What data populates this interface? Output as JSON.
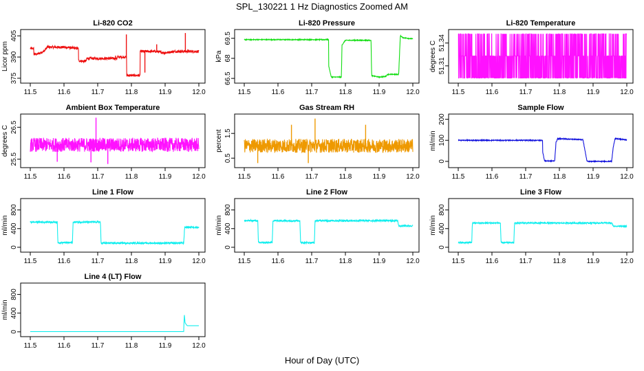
{
  "page": {
    "title": "SPL_130221  1 Hz Diagnostics Zoomed AM",
    "xlabel": "Hour of Day (UTC)"
  },
  "chart_data": [
    {
      "type": "line",
      "title": "Li-820 CO2",
      "ylabel": "Licor ppm",
      "color": "#ee1111",
      "xlim": [
        11.5,
        12.0
      ],
      "xticks": [
        "11.5",
        "11.6",
        "11.7",
        "11.8",
        "11.9",
        "12.0"
      ],
      "ylim": [
        373,
        408
      ],
      "yticks": [
        375,
        390,
        405
      ],
      "noise": 0.9,
      "spikes": [
        [
          11.785,
          406
        ],
        [
          11.84,
          379
        ],
        [
          11.875,
          399
        ],
        [
          11.96,
          407
        ],
        [
          11.753,
          391
        ]
      ],
      "x": [
        11.5,
        11.51,
        11.51,
        11.52,
        11.53,
        11.54,
        11.55,
        11.6,
        11.643,
        11.643,
        11.66,
        11.667,
        11.667,
        11.7,
        11.72,
        11.758,
        11.758,
        11.78,
        11.786,
        11.786,
        11.82,
        11.826,
        11.826,
        11.87,
        11.9,
        11.93,
        11.96,
        11.97,
        12.0
      ],
      "y": [
        396,
        396,
        392,
        392,
        393,
        394,
        397,
        397,
        396,
        387.5,
        387,
        387.5,
        389,
        389,
        389,
        389,
        390,
        390,
        390,
        377,
        377,
        377,
        394,
        394,
        393,
        394,
        394,
        394,
        394
      ]
    },
    {
      "type": "line",
      "title": "Li-820 Pressure",
      "ylabel": "kPa",
      "color": "#11dd11",
      "xlim": [
        11.5,
        12.0
      ],
      "xticks": [
        "11.5",
        "11.6",
        "11.7",
        "11.8",
        "11.9",
        "12.0"
      ],
      "ylim": [
        66.3,
        70.0
      ],
      "yticks": [
        66.5,
        68.0,
        69.5
      ],
      "noise": 0.03,
      "spikes": [],
      "x": [
        11.5,
        11.75,
        11.75,
        11.758,
        11.788,
        11.79,
        11.8,
        11.876,
        11.878,
        11.9,
        11.92,
        11.925,
        11.958,
        11.963,
        11.97,
        12.0
      ],
      "y": [
        69.4,
        69.4,
        67.5,
        66.6,
        66.6,
        69.0,
        69.35,
        69.35,
        66.7,
        66.6,
        66.65,
        66.8,
        66.8,
        69.7,
        69.55,
        69.45
      ]
    },
    {
      "type": "line",
      "title": "Li-820 Temperature",
      "ylabel": "degrees C",
      "color": "#ff11ff",
      "xlim": [
        11.5,
        12.0
      ],
      "xticks": [
        "11.5",
        "11.6",
        "11.7",
        "11.8",
        "11.9",
        "12.0"
      ],
      "ylim": [
        51.29,
        51.355
      ],
      "yticks": [
        51.31,
        51.34
      ],
      "noise": 0,
      "spikes": [],
      "x": [
        11.5,
        12.0
      ],
      "y": [
        51.322,
        51.322
      ],
      "band": [
        51.294,
        51.352
      ],
      "levels": [
        51.294,
        51.323,
        51.352
      ]
    },
    {
      "type": "line",
      "title": "Ambient Box Temperature",
      "ylabel": "degrees C",
      "color": "#ff11ff",
      "xlim": [
        11.5,
        12.0
      ],
      "xticks": [
        "11.5",
        "11.6",
        "11.7",
        "11.8",
        "11.9",
        "12.0"
      ],
      "ylim": [
        25.3,
        26.85
      ],
      "yticks": [
        25.5,
        26.5
      ],
      "noise": 0.22,
      "spikes": [
        [
          11.695,
          26.8
        ],
        [
          11.73,
          25.35
        ],
        [
          11.68,
          25.4
        ],
        [
          11.58,
          25.42
        ]
      ],
      "x": [
        11.5,
        12.0
      ],
      "y": [
        25.95,
        25.95
      ]
    },
    {
      "type": "line",
      "title": "Gas Stream RH",
      "ylabel": "percent",
      "color": "#ee9900",
      "xlim": [
        11.5,
        12.0
      ],
      "xticks": [
        "11.5",
        "11.6",
        "11.7",
        "11.8",
        "11.9",
        "12.0"
      ],
      "ylim": [
        0.2,
        2.2
      ],
      "yticks": [
        0.5,
        1.5
      ],
      "noise": 0.28,
      "spikes": [
        [
          11.71,
          2.1
        ],
        [
          11.69,
          0.3
        ],
        [
          11.54,
          0.3
        ],
        [
          11.64,
          1.85
        ],
        [
          11.86,
          1.85
        ]
      ],
      "x": [
        11.5,
        12.0
      ],
      "y": [
        1.0,
        1.0
      ]
    },
    {
      "type": "line",
      "title": "Sample Flow",
      "ylabel": "ml/min",
      "color": "#1111dd",
      "xlim": [
        11.5,
        12.0
      ],
      "xticks": [
        "11.5",
        "11.6",
        "11.7",
        "11.8",
        "11.9",
        "12.0"
      ],
      "ylim": [
        -20,
        215
      ],
      "yticks": [
        0,
        100,
        200
      ],
      "noise": 2,
      "spikes": [],
      "x": [
        11.5,
        11.75,
        11.75,
        11.756,
        11.786,
        11.79,
        11.795,
        11.87,
        11.875,
        11.882,
        11.955,
        11.96,
        11.965,
        12.0
      ],
      "y": [
        100,
        100,
        50,
        2,
        2,
        90,
        108,
        103,
        60,
        0,
        0,
        70,
        108,
        102
      ]
    },
    {
      "type": "line",
      "title": "Line 1 Flow",
      "ylabel": "ml/min",
      "color": "#11eeee",
      "xlim": [
        11.5,
        12.0
      ],
      "xticks": [
        "11.5",
        "11.6",
        "11.7",
        "11.8",
        "11.9",
        "12.0"
      ],
      "ylim": [
        -60,
        1000
      ],
      "yticks": [
        0,
        400,
        800
      ],
      "noise": 18,
      "spikes": [],
      "x": [
        11.5,
        11.58,
        11.582,
        11.625,
        11.627,
        11.708,
        11.71,
        11.955,
        11.958,
        12.0
      ],
      "y": [
        540,
        540,
        100,
        100,
        540,
        540,
        90,
        90,
        430,
        430
      ]
    },
    {
      "type": "line",
      "title": "Line 2 Flow",
      "ylabel": "ml/min",
      "color": "#11eeee",
      "xlim": [
        11.5,
        12.0
      ],
      "xticks": [
        "11.5",
        "11.6",
        "11.7",
        "11.8",
        "11.9",
        "12.0"
      ],
      "ylim": [
        -60,
        1000
      ],
      "yticks": [
        0,
        400,
        800
      ],
      "noise": 18,
      "spikes": [],
      "x": [
        11.5,
        11.54,
        11.542,
        11.583,
        11.585,
        11.665,
        11.667,
        11.708,
        11.71,
        11.955,
        11.958,
        12.0
      ],
      "y": [
        570,
        570,
        100,
        100,
        570,
        570,
        100,
        100,
        570,
        570,
        460,
        460
      ]
    },
    {
      "type": "line",
      "title": "Line 3 Flow",
      "ylabel": "ml/min",
      "color": "#11eeee",
      "xlim": [
        11.5,
        12.0
      ],
      "xticks": [
        "11.5",
        "11.6",
        "11.7",
        "11.8",
        "11.9",
        "12.0"
      ],
      "ylim": [
        -60,
        1000
      ],
      "yticks": [
        0,
        400,
        800
      ],
      "noise": 14,
      "spikes": [],
      "x": [
        11.5,
        11.54,
        11.542,
        11.625,
        11.627,
        11.665,
        11.667,
        11.955,
        11.96,
        12.0
      ],
      "y": [
        100,
        100,
        520,
        520,
        100,
        100,
        520,
        520,
        450,
        450
      ]
    },
    {
      "type": "line",
      "title": "Line 4 (LT) Flow",
      "ylabel": "ml/min",
      "color": "#11eeee",
      "xlim": [
        11.5,
        12.0
      ],
      "xticks": [
        "11.5",
        "11.6",
        "11.7",
        "11.8",
        "11.9",
        "12.0"
      ],
      "ylim": [
        -60,
        1000
      ],
      "yticks": [
        0,
        400,
        800
      ],
      "noise": 0,
      "spikes": [],
      "x": [
        11.5,
        11.955,
        11.957,
        11.959,
        11.963,
        11.966,
        12.0
      ],
      "y": [
        5,
        5,
        380,
        200,
        150,
        130,
        130
      ]
    }
  ]
}
